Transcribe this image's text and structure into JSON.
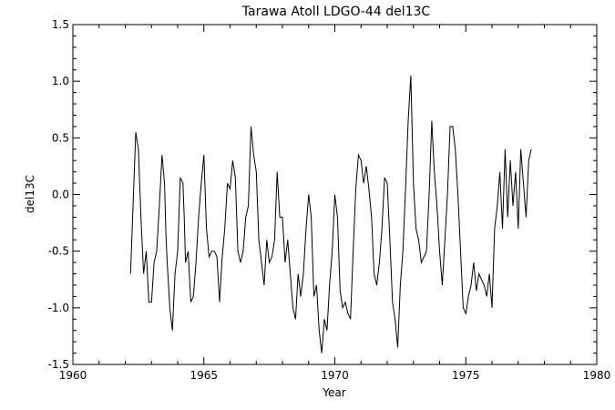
{
  "chart_data": {
    "type": "line",
    "title": "Tarawa Atoll LDGO-44 del13C",
    "xlabel": "Year",
    "ylabel": "del13C",
    "xlim": [
      1960,
      1980
    ],
    "ylim": [
      -1.5,
      1.5
    ],
    "grid": false,
    "xticks": [
      1960,
      1965,
      1970,
      1975,
      1980
    ],
    "xtick_labels": [
      "1960",
      "1965",
      "1970",
      "1975",
      "1980"
    ],
    "yticks": [
      -1.5,
      -1.0,
      -0.5,
      0.0,
      0.5,
      1.0,
      1.5
    ],
    "ytick_labels": [
      "-1.5",
      "-1.0",
      "-0.5",
      "0.0",
      "0.5",
      "1.0",
      "1.5"
    ],
    "series": [
      {
        "color": "#000000",
        "x": [
          1962.2,
          1962.4,
          1962.5,
          1962.6,
          1962.7,
          1962.8,
          1962.9,
          1963.0,
          1963.1,
          1963.2,
          1963.3,
          1963.4,
          1963.5,
          1963.55,
          1963.6,
          1963.7,
          1963.8,
          1963.9,
          1964.0,
          1964.1,
          1964.2,
          1964.25,
          1964.3,
          1964.4,
          1964.5,
          1964.6,
          1964.7,
          1964.8,
          1964.9,
          1965.0,
          1965.1,
          1965.2,
          1965.3,
          1965.4,
          1965.5,
          1965.6,
          1965.7,
          1965.8,
          1965.9,
          1966.0,
          1966.1,
          1966.2,
          1966.3,
          1966.4,
          1966.5,
          1966.6,
          1966.7,
          1966.8,
          1966.9,
          1967.0,
          1967.1,
          1967.2,
          1967.3,
          1967.4,
          1967.5,
          1967.6,
          1967.7,
          1967.8,
          1967.9,
          1968.0,
          1968.1,
          1968.2,
          1968.3,
          1968.4,
          1968.5,
          1968.6,
          1968.7,
          1968.8,
          1968.9,
          1969.0,
          1969.1,
          1969.2,
          1969.3,
          1969.4,
          1969.5,
          1969.6,
          1969.7,
          1969.8,
          1969.9,
          1970.0,
          1970.1,
          1970.2,
          1970.3,
          1970.4,
          1970.5,
          1970.6,
          1970.7,
          1970.8,
          1970.9,
          1971.0,
          1971.1,
          1971.2,
          1971.3,
          1971.4,
          1971.5,
          1971.6,
          1971.7,
          1971.8,
          1971.9,
          1972.0,
          1972.1,
          1972.2,
          1972.3,
          1972.4,
          1972.5,
          1972.6,
          1972.7,
          1972.8,
          1972.9,
          1973.0,
          1973.1,
          1973.2,
          1973.3,
          1973.4,
          1973.5,
          1973.6,
          1973.7,
          1973.8,
          1973.9,
          1974.0,
          1974.1,
          1974.2,
          1974.3,
          1974.4,
          1974.5,
          1974.6,
          1974.7,
          1974.8,
          1974.9,
          1975.0,
          1975.1,
          1975.2,
          1975.3,
          1975.4,
          1975.5,
          1975.6,
          1975.7,
          1975.8,
          1975.9,
          1976.0,
          1976.1,
          1976.2,
          1976.3,
          1976.4,
          1976.5,
          1976.6,
          1976.7,
          1976.8,
          1976.9,
          1977.0,
          1977.1,
          1977.2,
          1977.3,
          1977.4,
          1977.5
        ],
        "y": [
          -0.7,
          0.55,
          0.4,
          -0.2,
          -0.7,
          -0.5,
          -0.95,
          -0.95,
          -0.6,
          -0.5,
          -0.1,
          0.35,
          0.1,
          -0.35,
          -0.6,
          -1.0,
          -1.2,
          -0.7,
          -0.5,
          0.15,
          0.1,
          -0.2,
          -0.6,
          -0.5,
          -0.95,
          -0.9,
          -0.6,
          -0.2,
          0.1,
          0.35,
          -0.3,
          -0.55,
          -0.5,
          -0.5,
          -0.55,
          -0.95,
          -0.55,
          -0.3,
          0.1,
          0.05,
          0.3,
          0.15,
          -0.5,
          -0.6,
          -0.5,
          -0.2,
          -0.1,
          0.6,
          0.35,
          0.2,
          -0.4,
          -0.6,
          -0.8,
          -0.4,
          -0.6,
          -0.55,
          -0.4,
          0.2,
          -0.2,
          -0.2,
          -0.6,
          -0.4,
          -0.7,
          -1.0,
          -1.1,
          -0.7,
          -0.9,
          -0.7,
          -0.3,
          0.0,
          -0.2,
          -0.9,
          -0.8,
          -1.2,
          -1.4,
          -1.1,
          -1.2,
          -0.8,
          -0.5,
          0.0,
          -0.2,
          -0.85,
          -1.0,
          -0.95,
          -1.05,
          -1.1,
          -0.5,
          0.05,
          0.35,
          0.3,
          0.1,
          0.25,
          0.05,
          -0.2,
          -0.7,
          -0.8,
          -0.6,
          -0.3,
          0.15,
          0.1,
          -0.4,
          -0.95,
          -1.1,
          -1.35,
          -0.8,
          -0.5,
          0.05,
          0.65,
          1.05,
          0.1,
          -0.3,
          -0.4,
          -0.6,
          -0.55,
          -0.5,
          0.0,
          0.65,
          0.2,
          -0.1,
          -0.5,
          -0.8,
          -0.4,
          0.0,
          0.6,
          0.6,
          0.4,
          0.0,
          -0.5,
          -1.0,
          -1.05,
          -0.9,
          -0.8,
          -0.6,
          -0.85,
          -0.7,
          -0.75,
          -0.8,
          -0.9,
          -0.7,
          -1.0,
          -0.3,
          -0.1,
          0.2,
          -0.3,
          0.4,
          -0.2,
          0.3,
          -0.1,
          0.2,
          -0.3,
          0.4,
          0.1,
          -0.2,
          0.3,
          0.4
        ]
      }
    ]
  }
}
